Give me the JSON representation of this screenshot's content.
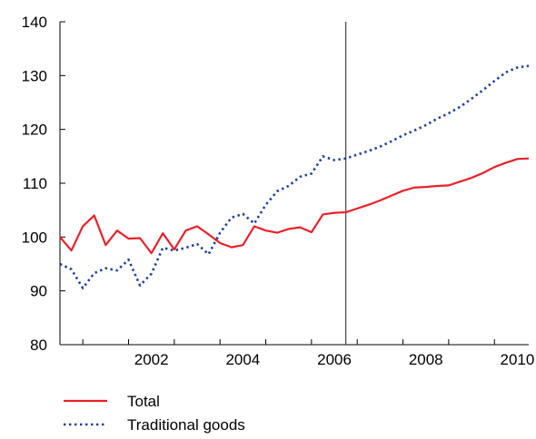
{
  "chart_data": {
    "type": "line",
    "title": "",
    "xlabel": "",
    "ylabel": "",
    "ylim": [
      80,
      140
    ],
    "yticks": [
      80,
      90,
      100,
      110,
      120,
      130,
      140
    ],
    "xlim": [
      2000.5,
      2010.75
    ],
    "xticks": [
      {
        "value": 2002,
        "label": "2002"
      },
      {
        "value": 2004,
        "label": "2004"
      },
      {
        "value": 2006,
        "label": "2006"
      },
      {
        "value": 2008,
        "label": "2008"
      },
      {
        "value": 2010,
        "label": "2010"
      }
    ],
    "vertical_marker": 2006.75,
    "grid": false,
    "legend_position": "bottom-left",
    "series": [
      {
        "name": "Total",
        "color": "#e8202a",
        "style": "solid",
        "points": [
          [
            2000.5,
            100.0
          ],
          [
            2000.75,
            97.5
          ],
          [
            2001.0,
            102.0
          ],
          [
            2001.25,
            104.0
          ],
          [
            2001.5,
            98.5
          ],
          [
            2001.75,
            101.2
          ],
          [
            2002.0,
            99.7
          ],
          [
            2002.25,
            99.8
          ],
          [
            2002.5,
            97.0
          ],
          [
            2002.75,
            100.7
          ],
          [
            2003.0,
            97.7
          ],
          [
            2003.25,
            101.2
          ],
          [
            2003.5,
            102.0
          ],
          [
            2003.75,
            100.5
          ],
          [
            2004.0,
            98.9
          ],
          [
            2004.25,
            98.1
          ],
          [
            2004.5,
            98.5
          ],
          [
            2004.75,
            102.0
          ],
          [
            2005.0,
            101.2
          ],
          [
            2005.25,
            100.8
          ],
          [
            2005.5,
            101.5
          ],
          [
            2005.75,
            101.8
          ],
          [
            2006.0,
            100.9
          ],
          [
            2006.25,
            104.2
          ],
          [
            2006.5,
            104.5
          ],
          [
            2006.75,
            104.6
          ],
          [
            2007.0,
            105.3
          ],
          [
            2007.25,
            106.0
          ],
          [
            2007.5,
            106.8
          ],
          [
            2007.75,
            107.7
          ],
          [
            2008.0,
            108.6
          ],
          [
            2008.25,
            109.2
          ],
          [
            2008.5,
            109.3
          ],
          [
            2008.75,
            109.5
          ],
          [
            2009.0,
            109.6
          ],
          [
            2009.25,
            110.3
          ],
          [
            2009.5,
            111.0
          ],
          [
            2009.75,
            111.9
          ],
          [
            2010.0,
            113.0
          ],
          [
            2010.25,
            113.8
          ],
          [
            2010.5,
            114.5
          ],
          [
            2010.75,
            114.6
          ]
        ]
      },
      {
        "name": "Traditional goods",
        "color": "#1f3f9a",
        "style": "dotted",
        "points": [
          [
            2000.5,
            95.0
          ],
          [
            2000.75,
            94.0
          ],
          [
            2001.0,
            90.5
          ],
          [
            2001.25,
            93.3
          ],
          [
            2001.5,
            94.2
          ],
          [
            2001.75,
            93.8
          ],
          [
            2002.0,
            95.8
          ],
          [
            2002.25,
            91.0
          ],
          [
            2002.5,
            93.2
          ],
          [
            2002.75,
            98.0
          ],
          [
            2003.0,
            97.5
          ],
          [
            2003.25,
            98.0
          ],
          [
            2003.5,
            98.7
          ],
          [
            2003.75,
            96.8
          ],
          [
            2004.0,
            100.8
          ],
          [
            2004.25,
            103.6
          ],
          [
            2004.5,
            104.3
          ],
          [
            2004.75,
            102.5
          ],
          [
            2005.0,
            106.0
          ],
          [
            2005.25,
            108.5
          ],
          [
            2005.5,
            109.5
          ],
          [
            2005.75,
            111.2
          ],
          [
            2006.0,
            111.8
          ],
          [
            2006.25,
            115.0
          ],
          [
            2006.5,
            114.3
          ],
          [
            2006.75,
            114.6
          ],
          [
            2007.0,
            115.3
          ],
          [
            2007.25,
            116.0
          ],
          [
            2007.5,
            116.8
          ],
          [
            2007.75,
            117.8
          ],
          [
            2008.0,
            118.9
          ],
          [
            2008.25,
            119.8
          ],
          [
            2008.5,
            120.8
          ],
          [
            2008.75,
            122.0
          ],
          [
            2009.0,
            123.0
          ],
          [
            2009.25,
            124.2
          ],
          [
            2009.5,
            125.7
          ],
          [
            2009.75,
            127.3
          ],
          [
            2010.0,
            129.0
          ],
          [
            2010.25,
            130.6
          ],
          [
            2010.5,
            131.5
          ],
          [
            2010.75,
            131.8
          ]
        ]
      }
    ]
  }
}
